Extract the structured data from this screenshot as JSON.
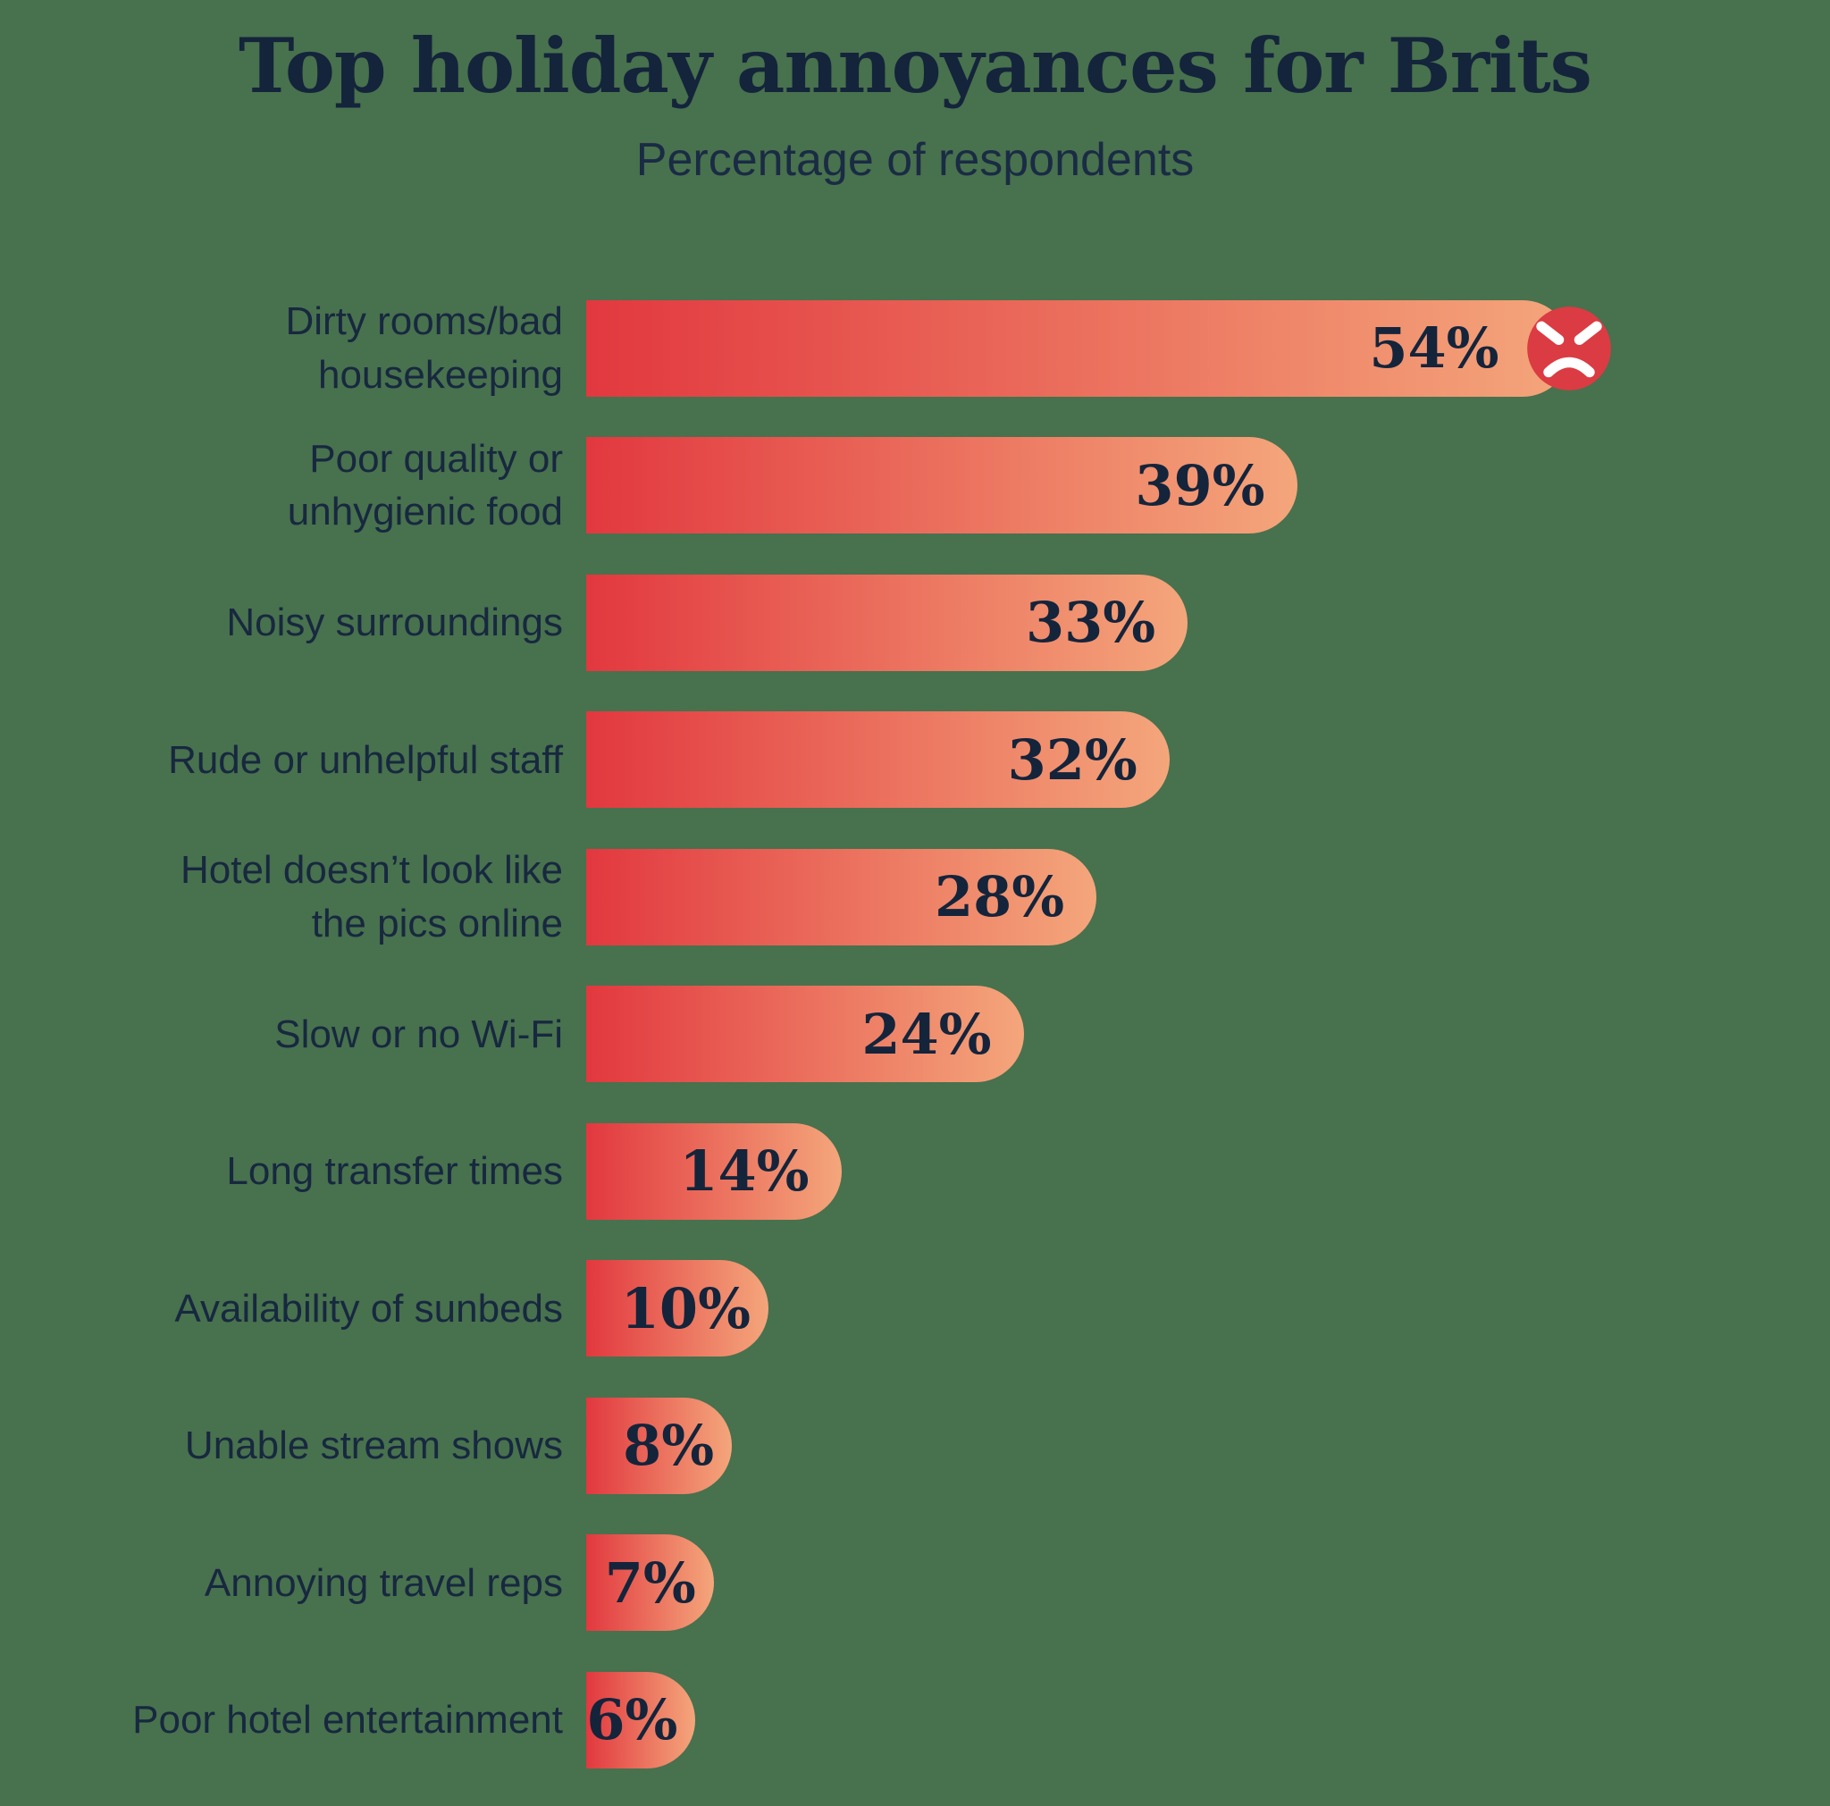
{
  "chart_data": {
    "type": "bar",
    "orientation": "horizontal",
    "title": "Top holiday annoyances for Brits",
    "subtitle": "Percentage of respondents",
    "unit": "%",
    "categories": [
      "Dirty rooms/bad\nhousekeeping",
      "Poor quality or\nunhygienic food",
      "Noisy surroundings",
      "Rude or unhelpful staff",
      "Hotel doesn’t look like\nthe pics online",
      "Slow or no Wi-Fi",
      "Long transfer times",
      "Availability of sunbeds",
      "Unable stream shows",
      "Annoying travel reps",
      "Poor hotel entertainment"
    ],
    "values": [
      54,
      39,
      33,
      32,
      28,
      24,
      14,
      10,
      8,
      7,
      6
    ],
    "value_labels": [
      "54%",
      "39%",
      "33%",
      "32%",
      "28%",
      "24%",
      "14%",
      "10%",
      "8%",
      "7%",
      "6%"
    ],
    "xlim": [
      0,
      60
    ],
    "grid": false,
    "legend": false,
    "annotations": [
      {
        "category_index": 0,
        "icon": "angry-face-icon"
      }
    ],
    "colors": {
      "background": "#48714E",
      "bar_gradient_start": "#E2383F",
      "bar_gradient_end": "#F4A67B",
      "icon_circle": "#DB3B42",
      "icon_face": "#FFFFFF",
      "text": "#14243B"
    }
  }
}
